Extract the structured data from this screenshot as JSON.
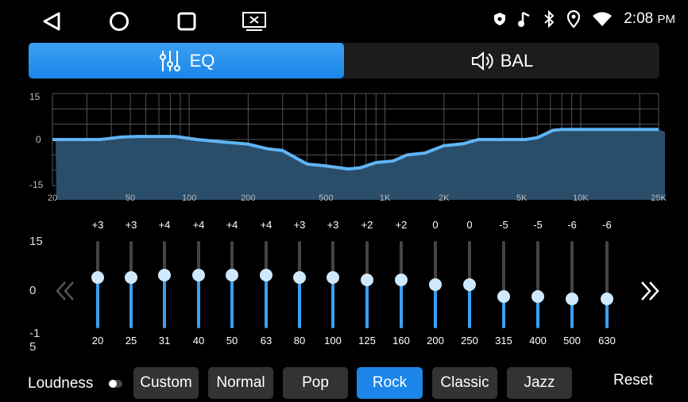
{
  "status_bar": {
    "time": "2:08",
    "ampm": "PM",
    "icons": [
      "shield-icon",
      "music-note-icon",
      "bluetooth-icon",
      "location-icon",
      "wifi-icon"
    ]
  },
  "nav_bar": {
    "icons": [
      "back-icon",
      "home-icon",
      "recents-icon",
      "screen-off-icon"
    ]
  },
  "tabs": [
    {
      "label": "EQ",
      "icon": "sliders-icon",
      "active": true
    },
    {
      "label": "BAL",
      "icon": "speaker-icon",
      "active": false
    }
  ],
  "accent": "#1b86e8",
  "graph": {
    "y_labels": [
      "15",
      "0",
      "-15"
    ],
    "x_labels": [
      "20",
      "50",
      "100",
      "200",
      "500",
      "1K",
      "2K",
      "5K",
      "10K",
      "25K"
    ],
    "ylim": [
      -15,
      15
    ],
    "curve": [
      [
        20,
        0
      ],
      [
        35,
        0
      ],
      [
        45,
        0.8
      ],
      [
        55,
        1
      ],
      [
        85,
        1
      ],
      [
        110,
        0
      ],
      [
        150,
        -0.8
      ],
      [
        200,
        -1.5
      ],
      [
        250,
        -3
      ],
      [
        300,
        -3.6
      ],
      [
        400,
        -8
      ],
      [
        500,
        -8.6
      ],
      [
        650,
        -9.6
      ],
      [
        750,
        -9.2
      ],
      [
        900,
        -7.5
      ],
      [
        1100,
        -7
      ],
      [
        1300,
        -5
      ],
      [
        1600,
        -4.4
      ],
      [
        2000,
        -2
      ],
      [
        2500,
        -1.4
      ],
      [
        3000,
        0
      ],
      [
        5200,
        0
      ],
      [
        6000,
        0.6
      ],
      [
        7200,
        3
      ],
      [
        8000,
        3.3
      ],
      [
        25000,
        3.3
      ]
    ]
  },
  "sliders": {
    "scale_labels": [
      "15",
      "0",
      "-15"
    ],
    "range": [
      -15,
      15
    ],
    "bands": [
      {
        "freq": "20",
        "value": "+3"
      },
      {
        "freq": "25",
        "value": "+3"
      },
      {
        "freq": "31",
        "value": "+4"
      },
      {
        "freq": "40",
        "value": "+4"
      },
      {
        "freq": "50",
        "value": "+4"
      },
      {
        "freq": "63",
        "value": "+4"
      },
      {
        "freq": "80",
        "value": "+3"
      },
      {
        "freq": "100",
        "value": "+3"
      },
      {
        "freq": "125",
        "value": "+2"
      },
      {
        "freq": "160",
        "value": "+2"
      },
      {
        "freq": "200",
        "value": "0"
      },
      {
        "freq": "250",
        "value": "0"
      },
      {
        "freq": "315",
        "value": "-5"
      },
      {
        "freq": "400",
        "value": "-5"
      },
      {
        "freq": "500",
        "value": "-6"
      },
      {
        "freq": "630",
        "value": "-6"
      }
    ]
  },
  "loudness": {
    "label": "Loudness",
    "on": false
  },
  "presets": [
    {
      "label": "Custom"
    },
    {
      "label": "Normal"
    },
    {
      "label": "Pop"
    },
    {
      "label": "Rock",
      "active": true
    },
    {
      "label": "Classic"
    },
    {
      "label": "Jazz"
    }
  ],
  "reset_label": "Reset"
}
